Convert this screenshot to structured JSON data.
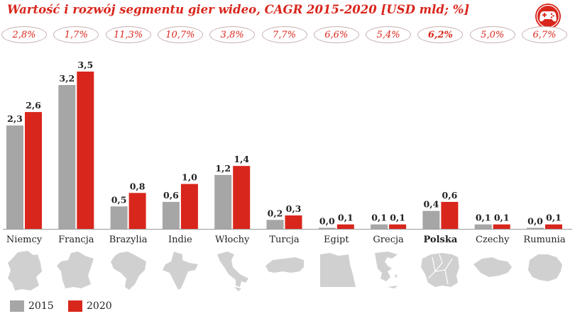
{
  "title": "Wartość i rozwój segmentu gier wideo, CAGR 2015-2020 [USD mld; %]",
  "colors": {
    "s2015": "#a6a6a6",
    "s2020": "#d9261c",
    "title": "#d9261c",
    "map": "#d0d0d0"
  },
  "icons": {
    "corner": "gamepad-icon"
  },
  "cagr": [
    "2,8%",
    "1,7%",
    "11,3%",
    "10,7%",
    "3,8%",
    "7,7%",
    "6,6%",
    "5,4%",
    "6,2%",
    "5,0%",
    "6,7%"
  ],
  "chart_data": {
    "type": "bar",
    "title": "Wartość i rozwój segmentu gier wideo, CAGR 2015-2020 [USD mld; %]",
    "categories": [
      "Niemcy",
      "Francja",
      "Brazylia",
      "Indie",
      "Włochy",
      "Turcja",
      "Egipt",
      "Grecja",
      "Polska",
      "Czechy",
      "Rumunia"
    ],
    "bold_category": "Polska",
    "series": [
      {
        "name": "2015",
        "values": [
          2.3,
          3.2,
          0.5,
          0.6,
          1.2,
          0.2,
          0.0,
          0.1,
          0.4,
          0.1,
          0.0
        ],
        "labels": [
          "2,3",
          "3,2",
          "0,5",
          "0,6",
          "1,2",
          "0,2",
          "0,0",
          "0,1",
          "0,4",
          "0,1",
          "0,0"
        ]
      },
      {
        "name": "2020",
        "values": [
          2.6,
          3.5,
          0.8,
          1.0,
          1.4,
          0.3,
          0.1,
          0.1,
          0.6,
          0.1,
          0.1
        ],
        "labels": [
          "2,6",
          "3,5",
          "0,8",
          "1,0",
          "1,4",
          "0,3",
          "0,1",
          "0,1",
          "0,6",
          "0,1",
          "0,1"
        ]
      }
    ],
    "ylim": [
      0,
      3.5
    ],
    "grid": false,
    "legend": "bottom-left"
  }
}
